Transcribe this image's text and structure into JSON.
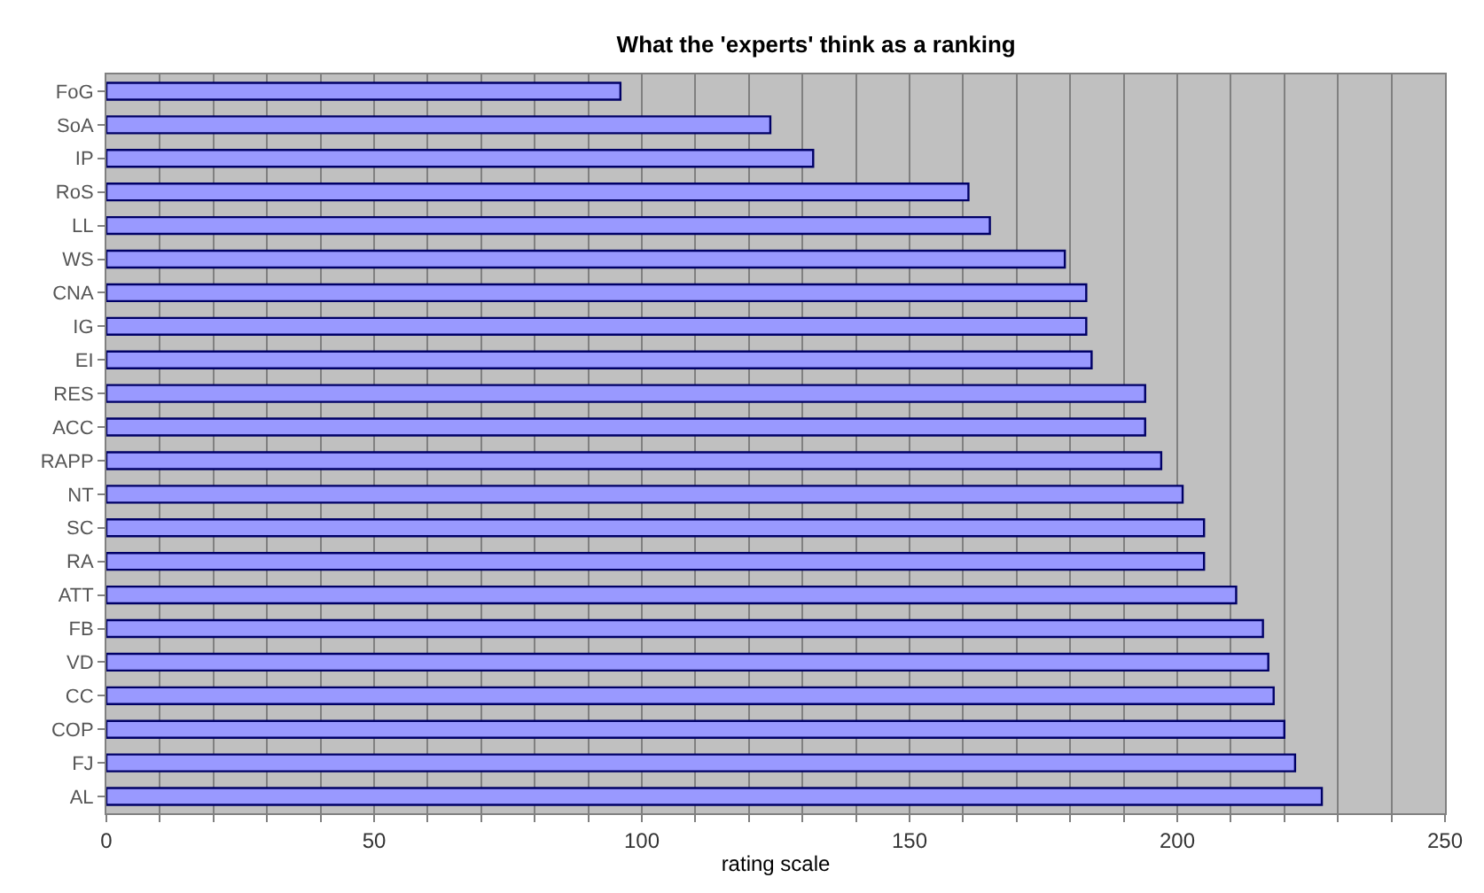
{
  "chart_data": {
    "type": "bar",
    "orientation": "horizontal",
    "title": "What the 'experts' think as a ranking",
    "xlabel": "rating scale",
    "categories": [
      "FoG",
      "SoA",
      "IP",
      "RoS",
      "LL",
      "WS",
      "CNA",
      "IG",
      "EI",
      "RES",
      "ACC",
      "RAPP",
      "NT",
      "SC",
      "RA",
      "ATT",
      "FB",
      "VD",
      "CC",
      "COP",
      "FJ",
      "AL"
    ],
    "values": [
      96,
      124,
      132,
      161,
      165,
      179,
      183,
      183,
      184,
      194,
      194,
      197,
      201,
      205,
      205,
      211,
      216,
      217,
      218,
      220,
      222,
      227
    ],
    "color": "#9999ff",
    "xlim": [
      0,
      250
    ],
    "xticks": [
      0,
      {
        "value": 10,
        "label": null
      },
      {
        "value": 20,
        "label": null
      },
      {
        "value": 30,
        "label": null
      },
      {
        "value": 40,
        "label": null
      },
      50,
      {
        "value": 60,
        "label": null
      },
      {
        "value": 70,
        "label": null
      },
      {
        "value": 80,
        "label": null
      },
      {
        "value": 90,
        "label": null
      },
      100,
      {
        "value": 110,
        "label": null
      },
      {
        "value": 120,
        "label": null
      },
      {
        "value": 130,
        "label": null
      },
      {
        "value": 140,
        "label": null
      },
      150,
      {
        "value": 160,
        "label": null
      },
      {
        "value": 170,
        "label": null
      },
      {
        "value": 180,
        "label": null
      },
      {
        "value": 190,
        "label": null
      },
      200,
      {
        "value": 210,
        "label": null
      },
      {
        "value": 220,
        "label": null
      },
      {
        "value": 230,
        "label": null
      },
      {
        "value": 240,
        "label": null
      },
      250
    ],
    "grid": "x"
  }
}
